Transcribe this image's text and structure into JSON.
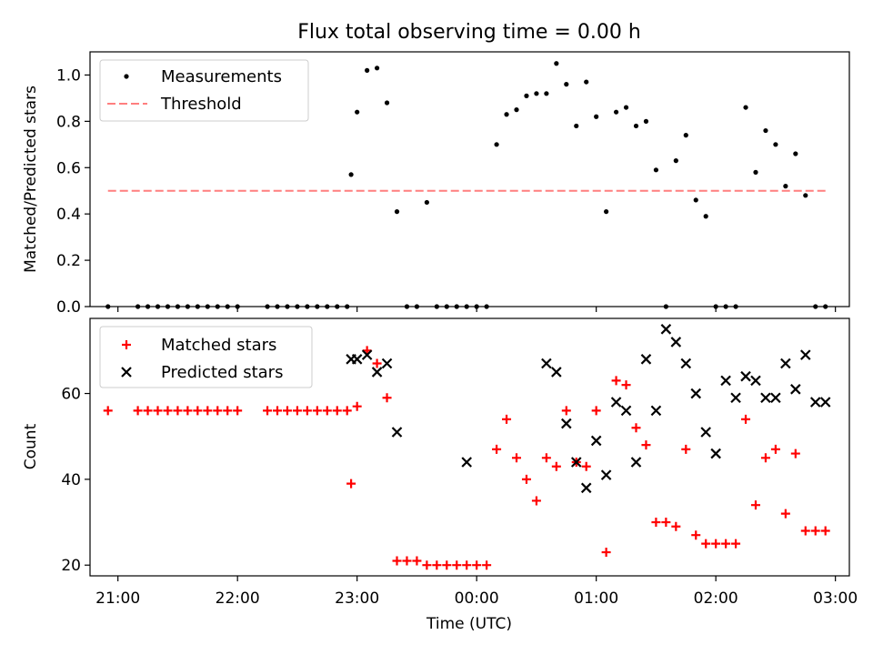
{
  "chart_data": {
    "title": "Flux total observing time = 0.00 h",
    "xlabel": "Time (UTC)",
    "xlim": [
      "20:46",
      "03:07"
    ],
    "xticks": [
      "21:00",
      "22:00",
      "23:00",
      "00:00",
      "01:00",
      "02:00",
      "03:00"
    ],
    "panels": [
      {
        "type": "scatter",
        "ylabel": "Matched/Predicted stars",
        "ylim": [
          0,
          1.1
        ],
        "yticks": [
          "0.0",
          "0.2",
          "0.4",
          "0.6",
          "0.8",
          "1.0"
        ],
        "legend_position": "upper-left",
        "series": [
          {
            "name": "Measurements",
            "marker": "dot",
            "color": "#000000",
            "x": [
              "20:55",
              "21:10",
              "21:15",
              "21:20",
              "21:25",
              "21:30",
              "21:35",
              "21:40",
              "21:45",
              "21:50",
              "21:55",
              "22:00",
              "22:15",
              "22:20",
              "22:25",
              "22:30",
              "22:35",
              "22:40",
              "22:45",
              "22:50",
              "22:55",
              "22:57",
              "23:00",
              "23:05",
              "23:10",
              "23:15",
              "23:20",
              "23:25",
              "23:30",
              "23:35",
              "23:40",
              "23:45",
              "23:50",
              "23:55",
              "00:00",
              "00:05",
              "00:10",
              "00:15",
              "00:20",
              "00:25",
              "00:30",
              "00:35",
              "00:40",
              "00:45",
              "00:50",
              "00:55",
              "01:00",
              "01:05",
              "01:10",
              "01:15",
              "01:20",
              "01:25",
              "01:30",
              "01:35",
              "01:40",
              "01:45",
              "01:50",
              "01:55",
              "02:00",
              "02:05",
              "02:10",
              "02:15",
              "02:20",
              "02:25",
              "02:30",
              "02:35",
              "02:40",
              "02:45",
              "02:50",
              "02:55"
            ],
            "y": [
              0,
              0,
              0,
              0,
              0,
              0,
              0,
              0,
              0,
              0,
              0,
              0,
              0,
              0,
              0,
              0,
              0,
              0,
              0,
              0,
              0,
              0.57,
              0.84,
              1.02,
              1.03,
              0.88,
              0.41,
              0,
              0,
              0.45,
              0,
              0,
              0,
              0,
              0,
              0,
              0.7,
              0.83,
              0.85,
              0.91,
              0.92,
              0.92,
              1.05,
              0.96,
              0.78,
              0.97,
              0.82,
              0.41,
              0.84,
              0.86,
              0.78,
              0.8,
              0.59,
              0,
              0.63,
              0.74,
              0.46,
              0.39,
              0,
              0,
              0,
              0.86,
              0.58,
              0.76,
              0.7,
              0.52,
              0.66,
              0.48,
              0,
              0
            ]
          },
          {
            "name": "Threshold",
            "type": "line",
            "style": "dashed",
            "color": "#ff7f7f",
            "x": [
              "20:55",
              "02:55"
            ],
            "y": [
              0.5,
              0.5
            ]
          }
        ]
      },
      {
        "type": "scatter",
        "ylabel": "Count",
        "ylim": [
          17.5,
          77.5
        ],
        "yticks": [
          "20",
          "40",
          "60"
        ],
        "legend_position": "upper-left",
        "series": [
          {
            "name": "Matched stars",
            "marker": "plus",
            "color": "#ff0000",
            "x": [
              "20:55",
              "21:10",
              "21:15",
              "21:20",
              "21:25",
              "21:30",
              "21:35",
              "21:40",
              "21:45",
              "21:50",
              "21:55",
              "22:00",
              "22:15",
              "22:20",
              "22:25",
              "22:30",
              "22:35",
              "22:40",
              "22:45",
              "22:50",
              "22:55",
              "22:57",
              "23:00",
              "23:05",
              "23:10",
              "23:15",
              "23:20",
              "23:25",
              "23:30",
              "23:35",
              "23:40",
              "23:45",
              "23:50",
              "23:55",
              "00:00",
              "00:05",
              "00:10",
              "00:15",
              "00:20",
              "00:25",
              "00:30",
              "00:35",
              "00:40",
              "00:45",
              "00:50",
              "00:55",
              "01:00",
              "01:05",
              "01:10",
              "01:15",
              "01:20",
              "01:25",
              "01:30",
              "01:35",
              "01:40",
              "01:45",
              "01:50",
              "01:55",
              "02:00",
              "02:05",
              "02:10",
              "02:15",
              "02:20",
              "02:25",
              "02:30",
              "02:35",
              "02:40",
              "02:45",
              "02:50",
              "02:55"
            ],
            "y": [
              56,
              56,
              56,
              56,
              56,
              56,
              56,
              56,
              56,
              56,
              56,
              56,
              56,
              56,
              56,
              56,
              56,
              56,
              56,
              56,
              56,
              39,
              57,
              70,
              67,
              59,
              21,
              21,
              21,
              20,
              20,
              20,
              20,
              20,
              20,
              20,
              47,
              54,
              45,
              40,
              35,
              45,
              43,
              56,
              44,
              43,
              56,
              23,
              63,
              62,
              52,
              48,
              30,
              30,
              29,
              47,
              27,
              25,
              25,
              25,
              25,
              54,
              34,
              45,
              47,
              32,
              46,
              28,
              28,
              28
            ]
          },
          {
            "name": "Predicted stars",
            "marker": "x",
            "color": "#000000",
            "x": [
              "22:57",
              "23:00",
              "23:05",
              "23:10",
              "23:15",
              "23:20",
              "23:55",
              "00:35",
              "00:40",
              "00:45",
              "00:50",
              "00:55",
              "01:00",
              "01:05",
              "01:10",
              "01:15",
              "01:20",
              "01:25",
              "01:30",
              "01:35",
              "01:40",
              "01:45",
              "01:50",
              "01:55",
              "02:00",
              "02:05",
              "02:10",
              "02:15",
              "02:20",
              "02:25",
              "02:30",
              "02:35",
              "02:40",
              "02:45",
              "02:50",
              "02:55"
            ],
            "y": [
              68,
              68,
              69,
              65,
              67,
              51,
              44,
              67,
              65,
              53,
              44,
              38,
              49,
              41,
              58,
              56,
              44,
              68,
              56,
              75,
              72,
              67,
              60,
              51,
              46,
              63,
              59,
              64,
              63,
              59,
              59,
              67,
              61,
              69,
              58,
              58
            ]
          }
        ]
      }
    ]
  }
}
